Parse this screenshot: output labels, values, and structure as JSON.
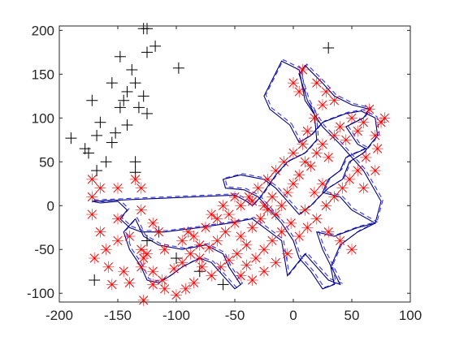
{
  "chart_data": {
    "type": "scatter",
    "title": "",
    "xlabel": "",
    "ylabel": "",
    "xlim": [
      -200,
      100
    ],
    "ylim": [
      -110,
      205
    ],
    "xticks": [
      -200,
      -150,
      -100,
      -50,
      0,
      50,
      100
    ],
    "yticks": [
      -100,
      -50,
      0,
      50,
      100,
      150,
      200
    ],
    "xtick_labels": [
      "-200",
      "-150",
      "-100",
      "-50",
      "0",
      "50",
      "100"
    ],
    "ytick_labels": [
      "-100",
      "-50",
      "0",
      "50",
      "100",
      "150",
      "200"
    ],
    "grid": false,
    "box": true,
    "colors": {
      "black_markers": "#000000",
      "red_markers": "#ff0000",
      "solid_path": "#00007f",
      "dashed_path": "#3333ff",
      "axes": "#262626"
    },
    "series": [
      {
        "marker": "plus",
        "color": "#000000",
        "points": [
          [
            -128,
            202
          ],
          [
            -125,
            202
          ],
          [
            -118,
            182
          ],
          [
            -125,
            175
          ],
          [
            -148,
            170
          ],
          [
            -98,
            157
          ],
          [
            -138,
            155
          ],
          [
            -155,
            140
          ],
          [
            -135,
            140
          ],
          [
            -142,
            130
          ],
          [
            -128,
            125
          ],
          [
            -145,
            120
          ],
          [
            -148,
            112
          ],
          [
            -132,
            112
          ],
          [
            -125,
            105
          ],
          [
            -172,
            120
          ],
          [
            -165,
            95
          ],
          [
            -142,
            92
          ],
          [
            -152,
            83
          ],
          [
            -168,
            80
          ],
          [
            -190,
            77
          ],
          [
            -155,
            72
          ],
          [
            -178,
            65
          ],
          [
            -175,
            60
          ],
          [
            -160,
            50
          ],
          [
            -135,
            50
          ],
          [
            -168,
            40
          ],
          [
            -135,
            38
          ],
          [
            30,
            180
          ],
          [
            -170,
            -85
          ],
          [
            -125,
            -40
          ],
          [
            -115,
            -30
          ],
          [
            -100,
            -60
          ],
          [
            -80,
            -75
          ],
          [
            -60,
            -90
          ]
        ]
      },
      {
        "marker": "x",
        "color": "#ff0000",
        "points": [
          [
            -172,
            30
          ],
          [
            -165,
            20
          ],
          [
            -172,
            10
          ],
          [
            -150,
            20
          ],
          [
            -135,
            30
          ],
          [
            -130,
            20
          ],
          [
            -172,
            -10
          ],
          [
            -150,
            -15
          ],
          [
            -130,
            -5
          ],
          [
            -165,
            -30
          ],
          [
            -150,
            -40
          ],
          [
            -160,
            -50
          ],
          [
            -140,
            -35
          ],
          [
            -130,
            -50
          ],
          [
            -125,
            -55
          ],
          [
            -115,
            -30
          ],
          [
            -170,
            -60
          ],
          [
            -158,
            -70
          ],
          [
            -145,
            -75
          ],
          [
            -130,
            -70
          ],
          [
            -155,
            -90
          ],
          [
            -140,
            -88
          ],
          [
            -128,
            -60
          ],
          [
            -120,
            -75
          ],
          [
            -112,
            -85
          ],
          [
            -102,
            -72
          ],
          [
            -95,
            -65
          ],
          [
            -88,
            -55
          ],
          [
            -80,
            -60
          ],
          [
            -72,
            -48
          ],
          [
            -65,
            -40
          ],
          [
            -58,
            -30
          ],
          [
            -50,
            -20
          ],
          [
            -45,
            -35
          ],
          [
            -40,
            -45
          ],
          [
            -35,
            -25
          ],
          [
            -28,
            -15
          ],
          [
            -22,
            -5
          ],
          [
            -18,
            10
          ],
          [
            -10,
            0
          ],
          [
            -5,
            15
          ],
          [
            0,
            25
          ],
          [
            5,
            35
          ],
          [
            10,
            50
          ],
          [
            15,
            45
          ],
          [
            20,
            60
          ],
          [
            25,
            70
          ],
          [
            30,
            55
          ],
          [
            35,
            80
          ],
          [
            40,
            90
          ],
          [
            45,
            75
          ],
          [
            50,
            100
          ],
          [
            55,
            85
          ],
          [
            60,
            95
          ],
          [
            65,
            110
          ],
          [
            70,
            80
          ],
          [
            75,
            95
          ],
          [
            78,
            100
          ],
          [
            72,
            65
          ],
          [
            62,
            55
          ],
          [
            55,
            40
          ],
          [
            48,
            30
          ],
          [
            42,
            20
          ],
          [
            35,
            10
          ],
          [
            28,
            0
          ],
          [
            20,
            -15
          ],
          [
            12,
            -25
          ],
          [
            5,
            -35
          ],
          [
            -2,
            -20
          ],
          [
            -10,
            -30
          ],
          [
            -18,
            -40
          ],
          [
            -25,
            -50
          ],
          [
            -32,
            -60
          ],
          [
            -40,
            -68
          ],
          [
            -48,
            -55
          ],
          [
            -55,
            -62
          ],
          [
            -62,
            -70
          ],
          [
            -70,
            -80
          ],
          [
            -78,
            -70
          ],
          [
            -85,
            -88
          ],
          [
            -92,
            -95
          ],
          [
            -100,
            -102
          ],
          [
            -110,
            -95
          ],
          [
            -120,
            -90
          ],
          [
            -128,
            -108
          ],
          [
            -95,
            -40
          ],
          [
            -85,
            -35
          ],
          [
            -75,
            -25
          ],
          [
            -65,
            -15
          ],
          [
            -55,
            -10
          ],
          [
            -45,
            0
          ],
          [
            -38,
            10
          ],
          [
            -30,
            20
          ],
          [
            -22,
            30
          ],
          [
            -15,
            40
          ],
          [
            -8,
            50
          ],
          [
            0,
            60
          ],
          [
            8,
            70
          ],
          [
            12,
            85
          ],
          [
            18,
            100
          ],
          [
            25,
            115
          ],
          [
            5,
            130
          ],
          [
            0,
            140
          ],
          [
            8,
            155
          ],
          [
            20,
            140
          ],
          [
            28,
            130
          ],
          [
            35,
            120
          ],
          [
            10,
            -5
          ],
          [
            18,
            15
          ],
          [
            25,
            25
          ],
          [
            -5,
            -55
          ],
          [
            -15,
            -65
          ],
          [
            -25,
            -75
          ],
          [
            -35,
            -85
          ],
          [
            -45,
            -80
          ],
          [
            -15,
            -10
          ],
          [
            -25,
            0
          ],
          [
            -35,
            5
          ],
          [
            -50,
            10
          ],
          [
            30,
            -30
          ],
          [
            40,
            -40
          ],
          [
            50,
            -50
          ],
          [
            60,
            20
          ],
          [
            70,
            40
          ],
          [
            -60,
            0
          ],
          [
            -70,
            -10
          ],
          [
            -80,
            -45
          ],
          [
            -90,
            -30
          ],
          [
            -110,
            -50
          ],
          [
            -120,
            -20
          ]
        ]
      }
    ]
  }
}
